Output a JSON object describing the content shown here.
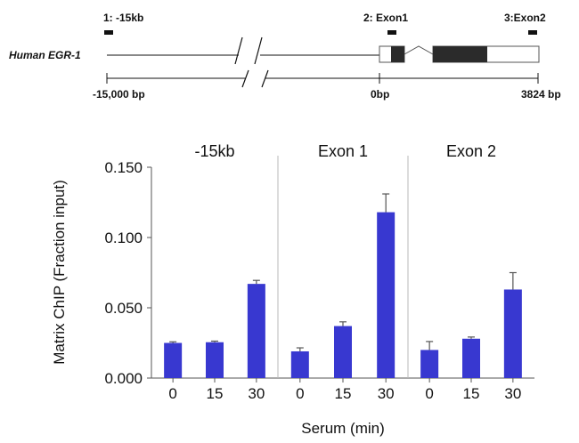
{
  "gene_map": {
    "gene_name": "Human EGR-1",
    "sites": [
      {
        "label": "1: -15kb"
      },
      {
        "label": "2: Exon1"
      },
      {
        "label": "3:Exon2"
      }
    ],
    "scale_labels": {
      "start": "-15,000  bp",
      "zero": "0bp",
      "end": "3824 bp"
    }
  },
  "chart_data": {
    "type": "bar",
    "ylabel": "Matrix ChIP (Fraction input)",
    "xlabel": "Serum (min)",
    "ylim": [
      0,
      0.15
    ],
    "yticks": [
      "0.000",
      "0.050",
      "0.100",
      "0.150"
    ],
    "ytick_values": [
      0,
      0.05,
      0.1,
      0.15
    ],
    "bar_color": "#3838d0",
    "panels": [
      {
        "title": "-15kb",
        "categories": [
          "0",
          "15",
          "30"
        ],
        "values": [
          0.025,
          0.0255,
          0.067
        ],
        "errors": [
          0.0008,
          0.0008,
          0.0025
        ]
      },
      {
        "title": "Exon 1",
        "categories": [
          "0",
          "15",
          "30"
        ],
        "values": [
          0.019,
          0.037,
          0.118
        ],
        "errors": [
          0.0025,
          0.003,
          0.013
        ]
      },
      {
        "title": "Exon 2",
        "categories": [
          "0",
          "15",
          "30"
        ],
        "values": [
          0.02,
          0.028,
          0.063
        ],
        "errors": [
          0.006,
          0.0012,
          0.012
        ]
      }
    ]
  }
}
